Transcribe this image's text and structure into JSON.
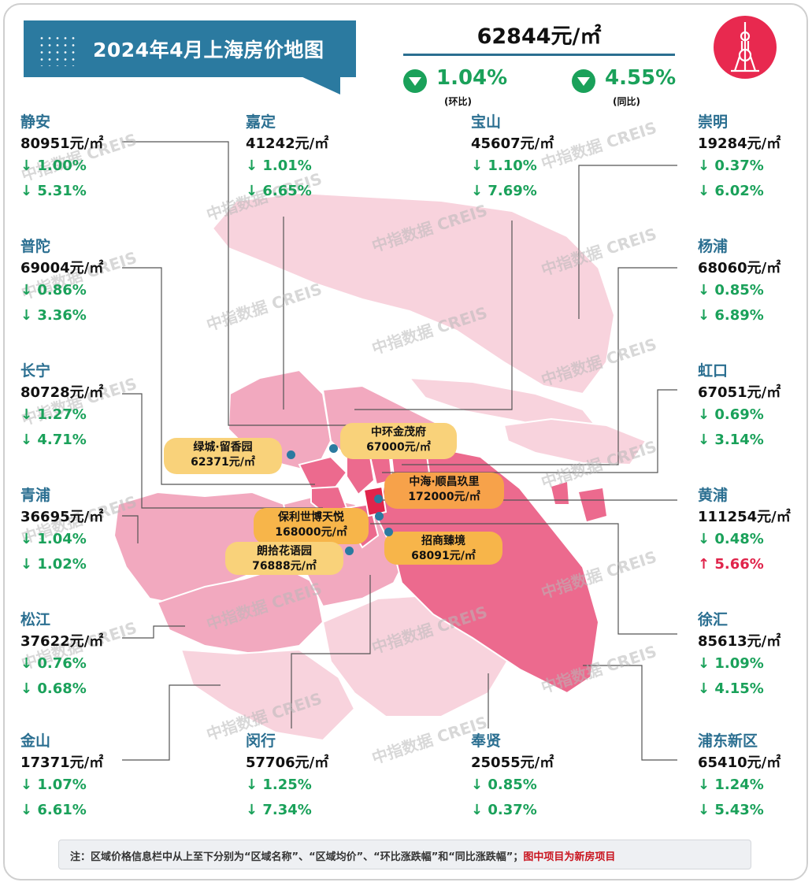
{
  "title": "2024年4月上海房价地图",
  "average_price": "62844元/㎡",
  "mom_change": {
    "value": "1.04%",
    "label": "(环比)"
  },
  "yoy_change": {
    "value": "4.55%",
    "label": "(同比)"
  },
  "watermark": "中指数据 CREIS",
  "districts": [
    {
      "name": "静安",
      "price": "80951元/㎡",
      "mom": "↓ 1.00%",
      "yoy": "↓ 5.31%"
    },
    {
      "name": "嘉定",
      "price": "41242元/㎡",
      "mom": "↓ 1.01%",
      "yoy": "↓ 6.65%"
    },
    {
      "name": "宝山",
      "price": "45607元/㎡",
      "mom": "↓ 1.10%",
      "yoy": "↓ 7.69%"
    },
    {
      "name": "崇明",
      "price": "19284元/㎡",
      "mom": "↓ 0.37%",
      "yoy": "↓ 6.02%"
    },
    {
      "name": "普陀",
      "price": "69004元/㎡",
      "mom": "↓ 0.86%",
      "yoy": "↓ 3.36%"
    },
    {
      "name": "杨浦",
      "price": "68060元/㎡",
      "mom": "↓ 0.85%",
      "yoy": "↓ 6.89%"
    },
    {
      "name": "长宁",
      "price": "80728元/㎡",
      "mom": "↓ 1.27%",
      "yoy": "↓ 4.71%"
    },
    {
      "name": "虹口",
      "price": "67051元/㎡",
      "mom": "↓ 0.69%",
      "yoy": "↓ 3.14%"
    },
    {
      "name": "青浦",
      "price": "36695元/㎡",
      "mom": "↓ 1.04%",
      "yoy": "↓ 1.02%"
    },
    {
      "name": "黄浦",
      "price": "111254元/㎡",
      "mom": "↓ 0.48%",
      "yoy": "↑ 5.66%"
    },
    {
      "name": "松江",
      "price": "37622元/㎡",
      "mom": "↓ 0.76%",
      "yoy": "↓ 0.68%"
    },
    {
      "name": "徐汇",
      "price": "85613元/㎡",
      "mom": "↓ 1.09%",
      "yoy": "↓ 4.15%"
    },
    {
      "name": "金山",
      "price": "17371元/㎡",
      "mom": "↓ 1.07%",
      "yoy": "↓ 6.61%"
    },
    {
      "name": "闵行",
      "price": "57706元/㎡",
      "mom": "↓ 1.25%",
      "yoy": "↓ 7.34%"
    },
    {
      "name": "奉贤",
      "price": "25055元/㎡",
      "mom": "↓ 0.85%",
      "yoy": "↓ 0.37%"
    },
    {
      "name": "浦东新区",
      "price": "65410元/㎡",
      "mom": "↓ 1.24%",
      "yoy": "↓ 5.43%"
    }
  ],
  "projects": [
    {
      "name": "绿城·留香园",
      "price": "62371元/㎡"
    },
    {
      "name": "中环金茂府",
      "price": "67000元/㎡"
    },
    {
      "name": "中海·顺昌玖里",
      "price": "172000元/㎡"
    },
    {
      "name": "保利世博天悦",
      "price": "168000元/㎡"
    },
    {
      "name": "朗拾花语园",
      "price": "76888元/㎡"
    },
    {
      "name": "招商臻境",
      "price": "68091元/㎡"
    }
  ],
  "note": {
    "text": "注：区域价格信息栏中从上至下分别为“区域名称”、“区域均价”、“环比涨跌幅”和“同比涨跌幅”；",
    "highlight": "图中项目为新房项目"
  },
  "colors": {
    "header_blue": "#2b7aa0",
    "district_name": "#2b6f91",
    "down_green": "#1aa15a",
    "up_red": "#e0244b",
    "map_light": "#f8d3dd",
    "map_mid": "#f2a9bf",
    "map_core": "#ec6a8e",
    "map_center": "#e0244b",
    "project_tag": "#f7b54a"
  },
  "icons": [
    "down-triangle-icon",
    "oriental-pearl-tower-icon"
  ]
}
